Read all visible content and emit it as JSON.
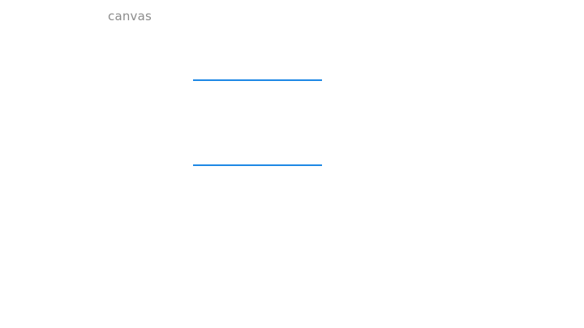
{
  "header": {
    "label": "canvas"
  },
  "form": {
    "fields": [
      {
        "value": "",
        "placeholder": ""
      },
      {
        "value": "",
        "placeholder": ""
      }
    ]
  },
  "colors": {
    "accent": "#1e88e5",
    "label_text": "#8c8c8c",
    "background": "#ffffff"
  }
}
